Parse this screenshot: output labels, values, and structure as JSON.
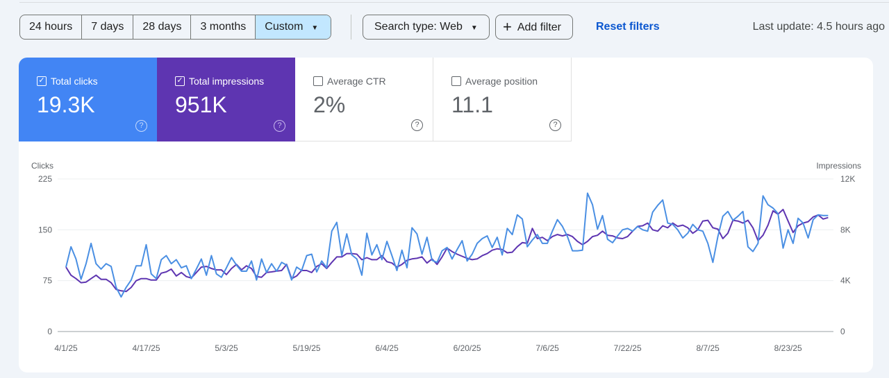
{
  "date_range": {
    "options": [
      "24 hours",
      "7 days",
      "28 days",
      "3 months",
      "Custom"
    ],
    "selected": "Custom"
  },
  "filters": {
    "search_type": "Search type: Web",
    "add_filter": "Add filter",
    "reset": "Reset filters"
  },
  "last_update": "Last update: 4.5 hours ago",
  "metrics": [
    {
      "label": "Total clicks",
      "value": "19.3K",
      "checked": true,
      "color": "#4285f4"
    },
    {
      "label": "Total impressions",
      "value": "951K",
      "checked": true,
      "color": "#5e35b1"
    },
    {
      "label": "Average CTR",
      "value": "2%",
      "checked": false
    },
    {
      "label": "Average position",
      "value": "11.1",
      "checked": false
    }
  ],
  "chart_data": {
    "type": "line",
    "left_axis": {
      "label": "Clicks",
      "ticks": [
        "0",
        "75",
        "150",
        "225"
      ],
      "range": [
        0,
        225
      ]
    },
    "right_axis": {
      "label": "Impressions",
      "ticks": [
        "0",
        "4K",
        "8K",
        "12K"
      ],
      "range": [
        0,
        12000
      ]
    },
    "x_ticks": [
      "4/1/25",
      "4/17/25",
      "5/3/25",
      "5/19/25",
      "6/4/25",
      "6/20/25",
      "7/6/25",
      "7/22/25",
      "8/7/25",
      "8/23/25"
    ],
    "x_interval_days": 1,
    "grid": true,
    "series": [
      {
        "name": "Total clicks",
        "axis": "left",
        "color": "#4a8fe3",
        "values": [
          95,
          125,
          107,
          77,
          100,
          130,
          100,
          92,
          100,
          96,
          65,
          51,
          65,
          76,
          97,
          97,
          128,
          85,
          78,
          106,
          112,
          100,
          106,
          94,
          97,
          78,
          92,
          107,
          83,
          112,
          85,
          80,
          94,
          109,
          98,
          89,
          89,
          104,
          76,
          107,
          87,
          100,
          89,
          102,
          98,
          76,
          95,
          90,
          112,
          114,
          88,
          104,
          94,
          148,
          161,
          112,
          144,
          113,
          107,
          83,
          145,
          113,
          128,
          106,
          133,
          112,
          90,
          120,
          94,
          153,
          144,
          114,
          139,
          105,
          102,
          119,
          124,
          107,
          121,
          134,
          104,
          114,
          130,
          137,
          141,
          124,
          139,
          113,
          152,
          143,
          172,
          166,
          125,
          135,
          143,
          130,
          130,
          148,
          165,
          155,
          140,
          119,
          119,
          120,
          204,
          187,
          151,
          171,
          136,
          131,
          141,
          150,
          152,
          148,
          155,
          150,
          148,
          176,
          186,
          194,
          160,
          158,
          150,
          138,
          145,
          158,
          150,
          148,
          130,
          102,
          140,
          170,
          177,
          164,
          170,
          177,
          125,
          118,
          130,
          200,
          187,
          182,
          174,
          123,
          150,
          130,
          167,
          160,
          138,
          165,
          172,
          171,
          171
        ]
      },
      {
        "name": "Total impressions",
        "axis": "right",
        "color": "#5e35b1",
        "values": [
          5070,
          4430,
          4160,
          3840,
          3890,
          4160,
          4430,
          4110,
          4110,
          3840,
          3310,
          3200,
          3150,
          3470,
          4000,
          4160,
          4160,
          4050,
          4050,
          4590,
          4690,
          4910,
          4370,
          4640,
          4320,
          4210,
          4640,
          5070,
          5120,
          4960,
          4850,
          4850,
          4480,
          4960,
          5280,
          4850,
          5170,
          4960,
          4320,
          4270,
          4640,
          4690,
          4750,
          4800,
          5280,
          4160,
          4370,
          4800,
          4800,
          4640,
          5120,
          5330,
          4960,
          5440,
          5870,
          5870,
          6130,
          6130,
          6080,
          5650,
          5810,
          5650,
          5650,
          5970,
          5490,
          5390,
          5070,
          5280,
          5600,
          5710,
          5760,
          5870,
          5390,
          5710,
          5280,
          5870,
          6560,
          6290,
          6080,
          5920,
          5760,
          5650,
          5710,
          5970,
          6130,
          6400,
          6510,
          6450,
          6190,
          6240,
          6670,
          6990,
          6930,
          8110,
          7310,
          7410,
          7150,
          7470,
          7630,
          7520,
          7630,
          7470,
          7090,
          6830,
          7090,
          7470,
          7570,
          7890,
          7570,
          7520,
          7360,
          7310,
          7470,
          7890,
          8270,
          8320,
          8530,
          8000,
          7890,
          8320,
          8160,
          8530,
          8270,
          8370,
          8160,
          7730,
          8000,
          8690,
          8750,
          8160,
          8050,
          7310,
          7730,
          8750,
          8690,
          8530,
          8750,
          8160,
          7150,
          7570,
          8370,
          9490,
          9230,
          9600,
          8690,
          7790,
          8320,
          8530,
          8640,
          9010,
          9170,
          8850,
          8960
        ]
      }
    ]
  }
}
